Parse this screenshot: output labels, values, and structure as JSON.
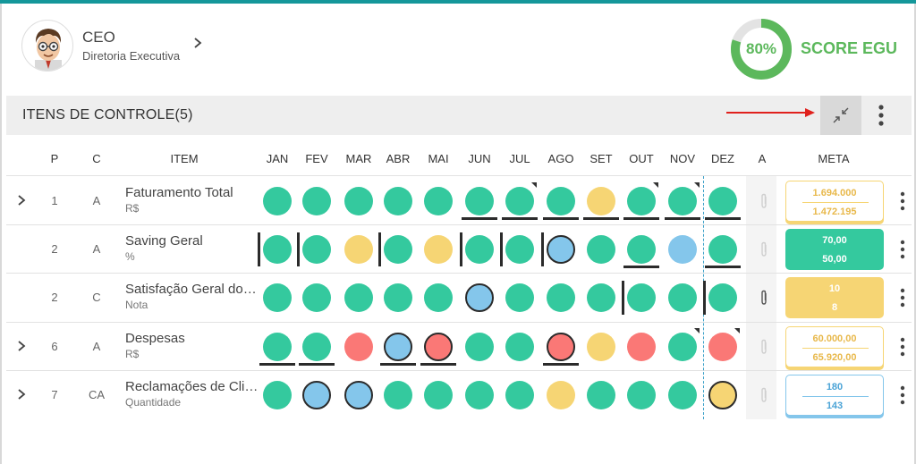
{
  "profile": {
    "role": "CEO",
    "department": "Diretoria Executiva",
    "avatar_icon": "cartoon-avatar-icon"
  },
  "score": {
    "percent": "80%",
    "value": 0.8,
    "label": "SCORE EGU",
    "color": "#5cb85c"
  },
  "panel": {
    "title": "ITENS DE CONTROLE(5)"
  },
  "colors": {
    "green": "#34c99e",
    "yellow": "#f6d574",
    "red": "#fa7876",
    "blue": "#84c6eb"
  },
  "columns": {
    "p": "P",
    "c": "C",
    "item": "ITEM",
    "months": [
      "JAN",
      "FEV",
      "MAR",
      "ABR",
      "MAI",
      "JUN",
      "JUL",
      "AGO",
      "SET",
      "OUT",
      "NOV",
      "DEZ"
    ],
    "a": "A",
    "meta": "META"
  },
  "rows": [
    {
      "expandable": true,
      "p": "1",
      "c": "A",
      "name": "Faturamento Total",
      "unit": "R$",
      "dots": [
        "green",
        "green",
        "green",
        "green",
        "green",
        "green",
        "green",
        "green",
        "yellow",
        "green",
        "green",
        "green"
      ],
      "outlined": [],
      "underline": [
        5,
        6,
        7,
        8,
        9,
        10,
        11
      ],
      "leftbar": [],
      "corner": [
        6,
        9,
        10
      ],
      "attachment": false,
      "meta": {
        "v1": "1.694.000",
        "v2": "1.472.195",
        "style": "outline-yellow"
      }
    },
    {
      "expandable": false,
      "p": "2",
      "c": "A",
      "name": "Saving Geral",
      "unit": "%",
      "dots": [
        "green",
        "green",
        "yellow",
        "green",
        "yellow",
        "green",
        "green",
        "blue",
        "green",
        "green",
        "blue",
        "green"
      ],
      "outlined": [
        7
      ],
      "underline": [
        9,
        11
      ],
      "leftbar": [
        0,
        1,
        3,
        5,
        6,
        7
      ],
      "corner": [],
      "attachment": false,
      "meta": {
        "v1": "70,00",
        "v2": "50,00",
        "style": "filled-green"
      }
    },
    {
      "expandable": false,
      "p": "2",
      "c": "C",
      "name": "Satisfação Geral dos Clientes",
      "unit": "Nota",
      "dots": [
        "green",
        "green",
        "green",
        "green",
        "green",
        "blue",
        "green",
        "green",
        "green",
        "green",
        "green",
        "green"
      ],
      "outlined": [
        5
      ],
      "underline": [],
      "leftbar": [
        9,
        11
      ],
      "corner": [],
      "attachment": true,
      "meta": {
        "v1": "10",
        "v2": "8",
        "style": "filled-yellow"
      }
    },
    {
      "expandable": true,
      "p": "6",
      "c": "A",
      "name": "Despesas",
      "unit": "R$",
      "dots": [
        "green",
        "green",
        "red",
        "blue",
        "red",
        "green",
        "green",
        "red",
        "yellow",
        "red",
        "green",
        "red"
      ],
      "outlined": [
        3,
        4,
        7
      ],
      "underline": [
        0,
        1,
        3,
        4,
        7
      ],
      "leftbar": [],
      "corner": [
        10,
        11
      ],
      "attachment": false,
      "meta": {
        "v1": "60.000,00",
        "v2": "65.920,00",
        "style": "outline-yellow"
      }
    },
    {
      "expandable": true,
      "p": "7",
      "c": "CA",
      "name": "Reclamações de Clientes",
      "unit": "Quantidade",
      "dots": [
        "green",
        "blue",
        "blue",
        "green",
        "green",
        "green",
        "green",
        "yellow",
        "green",
        "green",
        "green",
        "yellow"
      ],
      "outlined": [
        1,
        2,
        11
      ],
      "underline": [],
      "leftbar": [],
      "corner": [],
      "attachment": false,
      "meta": {
        "v1": "180",
        "v2": "143",
        "style": "outline-blue"
      }
    }
  ]
}
